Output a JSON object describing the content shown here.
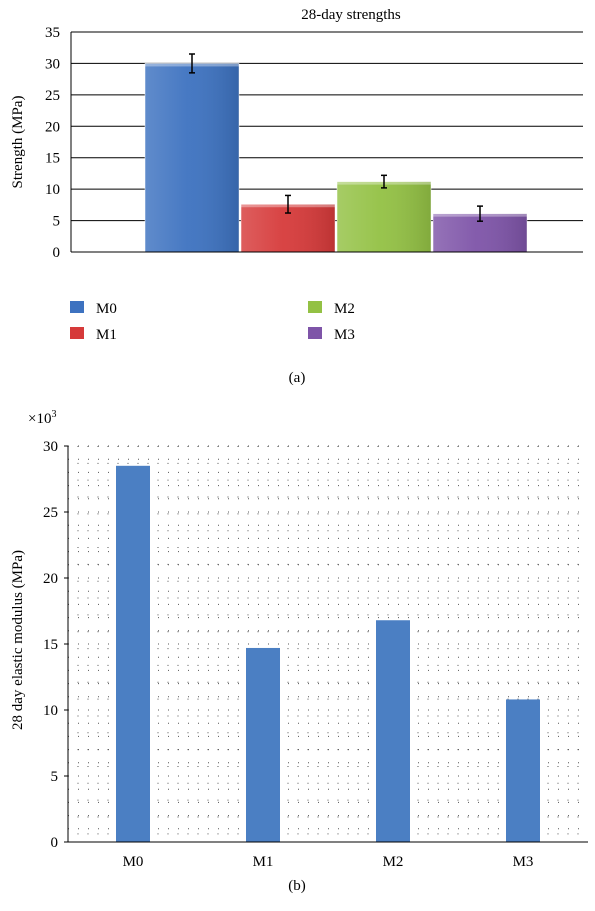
{
  "chart_data": [
    {
      "type": "bar",
      "panel_label": "(a)",
      "title": "28-day strengths",
      "ylabel": "Strength (MPa)",
      "xlabel": "",
      "ylim": [
        0,
        35
      ],
      "yticks": [
        0,
        5,
        10,
        15,
        20,
        25,
        30,
        35
      ],
      "grid": "horizontal",
      "legend_position": "bottom",
      "series": [
        {
          "name": "M0",
          "value": 30.0,
          "error": 1.5,
          "color": "#3d72c0"
        },
        {
          "name": "M1",
          "value": 7.6,
          "error": 1.4,
          "color": "#d63a3a"
        },
        {
          "name": "M2",
          "value": 11.2,
          "error": 1.0,
          "color": "#93c144"
        },
        {
          "name": "M3",
          "value": 6.1,
          "error": 1.2,
          "color": "#7e54a8"
        }
      ]
    },
    {
      "type": "bar",
      "panel_label": "(b)",
      "multiplier": "×10",
      "multiplier_exp": "3",
      "title": "",
      "ylabel": "28 day elastic modulus (MPa)",
      "xlabel": "",
      "ylim": [
        0,
        30
      ],
      "yticks": [
        0,
        5,
        10,
        15,
        20,
        25,
        30
      ],
      "grid": "dotted",
      "categories": [
        "M0",
        "M1",
        "M2",
        "M3"
      ],
      "values": [
        28.5,
        14.7,
        16.8,
        10.8
      ],
      "color": "#4b7fc3"
    }
  ]
}
